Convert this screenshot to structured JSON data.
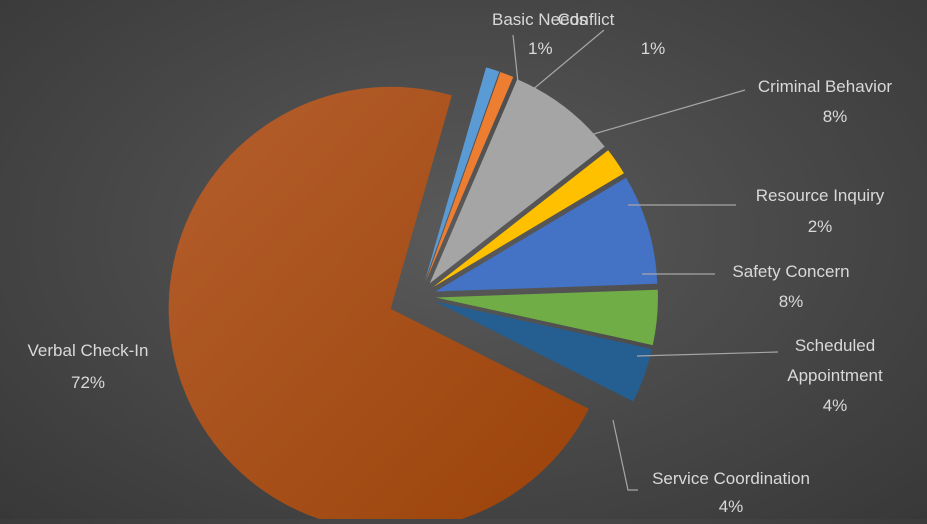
{
  "chart_data": {
    "type": "pie",
    "title": "",
    "slices": [
      {
        "label": "Basic Needs",
        "value": 1,
        "value_label": "1%",
        "color": "#5b9bd5"
      },
      {
        "label": "Conflict",
        "value": 1,
        "value_label": "1%",
        "color": "#ed7d31"
      },
      {
        "label": "Criminal Behavior",
        "value": 8,
        "value_label": "8%",
        "color": "#a5a5a5"
      },
      {
        "label": "Resource Inquiry",
        "value": 2,
        "value_label": "2%",
        "color": "#ffc000"
      },
      {
        "label": "Safety Concern",
        "value": 8,
        "value_label": "8%",
        "color": "#4472c4"
      },
      {
        "label": "Scheduled Appointment",
        "value": 4,
        "value_label": "4%",
        "color": "#70ad47"
      },
      {
        "label": "Service Coordination",
        "value": 4,
        "value_label": "4%",
        "color": "#255e91"
      },
      {
        "label": "Verbal Check-In",
        "value": 72,
        "value_label": "72%",
        "color": "#9e480e"
      }
    ],
    "legend": "none",
    "exploded": true,
    "leader_line_color": "#a6a6a6"
  }
}
